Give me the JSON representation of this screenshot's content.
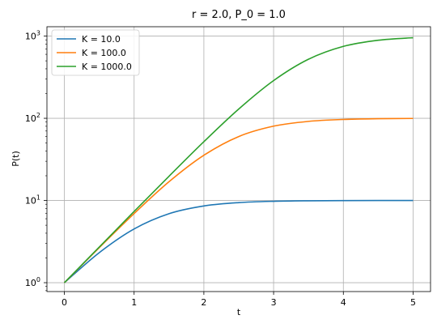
{
  "chart_data": {
    "type": "line",
    "title": "r = 2.0, P_0 = 1.0",
    "xlabel": "t",
    "ylabel": "P(t)",
    "xlim": [
      -0.25,
      5.25
    ],
    "ylim": [
      0.78,
      1300
    ],
    "yscale": "log",
    "grid": true,
    "legend_position": "top-left",
    "x_ticks": [
      0,
      1,
      2,
      3,
      4,
      5
    ],
    "x_tick_labels": [
      "0",
      "1",
      "2",
      "3",
      "4",
      "5"
    ],
    "y_ticks": [
      1,
      10,
      100,
      1000
    ],
    "y_tick_labels": [
      {
        "base": "10",
        "exp": "0"
      },
      {
        "base": "10",
        "exp": "1"
      },
      {
        "base": "10",
        "exp": "2"
      },
      {
        "base": "10",
        "exp": "3"
      }
    ],
    "x": [
      0,
      0.5,
      1,
      1.5,
      2,
      2.5,
      3,
      3.5,
      4,
      4.5,
      5
    ],
    "series": [
      {
        "name": "K = 10.0",
        "color": "#1f77b4",
        "values": [
          1.0,
          2.32,
          4.51,
          6.91,
          8.58,
          9.42,
          9.78,
          9.92,
          9.97,
          9.99,
          10.0
        ]
      },
      {
        "name": "K = 100.0",
        "color": "#ff7f0e",
        "values": [
          1.0,
          2.67,
          6.94,
          16.9,
          35.5,
          60.0,
          80.2,
          91.7,
          96.8,
          98.8,
          99.6
        ]
      },
      {
        "name": "K = 1000.0",
        "color": "#2ca02c",
        "values": [
          1.0,
          2.71,
          7.35,
          19.7,
          51.9,
          129.6,
          287.5,
          522.8,
          749.8,
          890.4,
          956.6
        ]
      }
    ]
  }
}
